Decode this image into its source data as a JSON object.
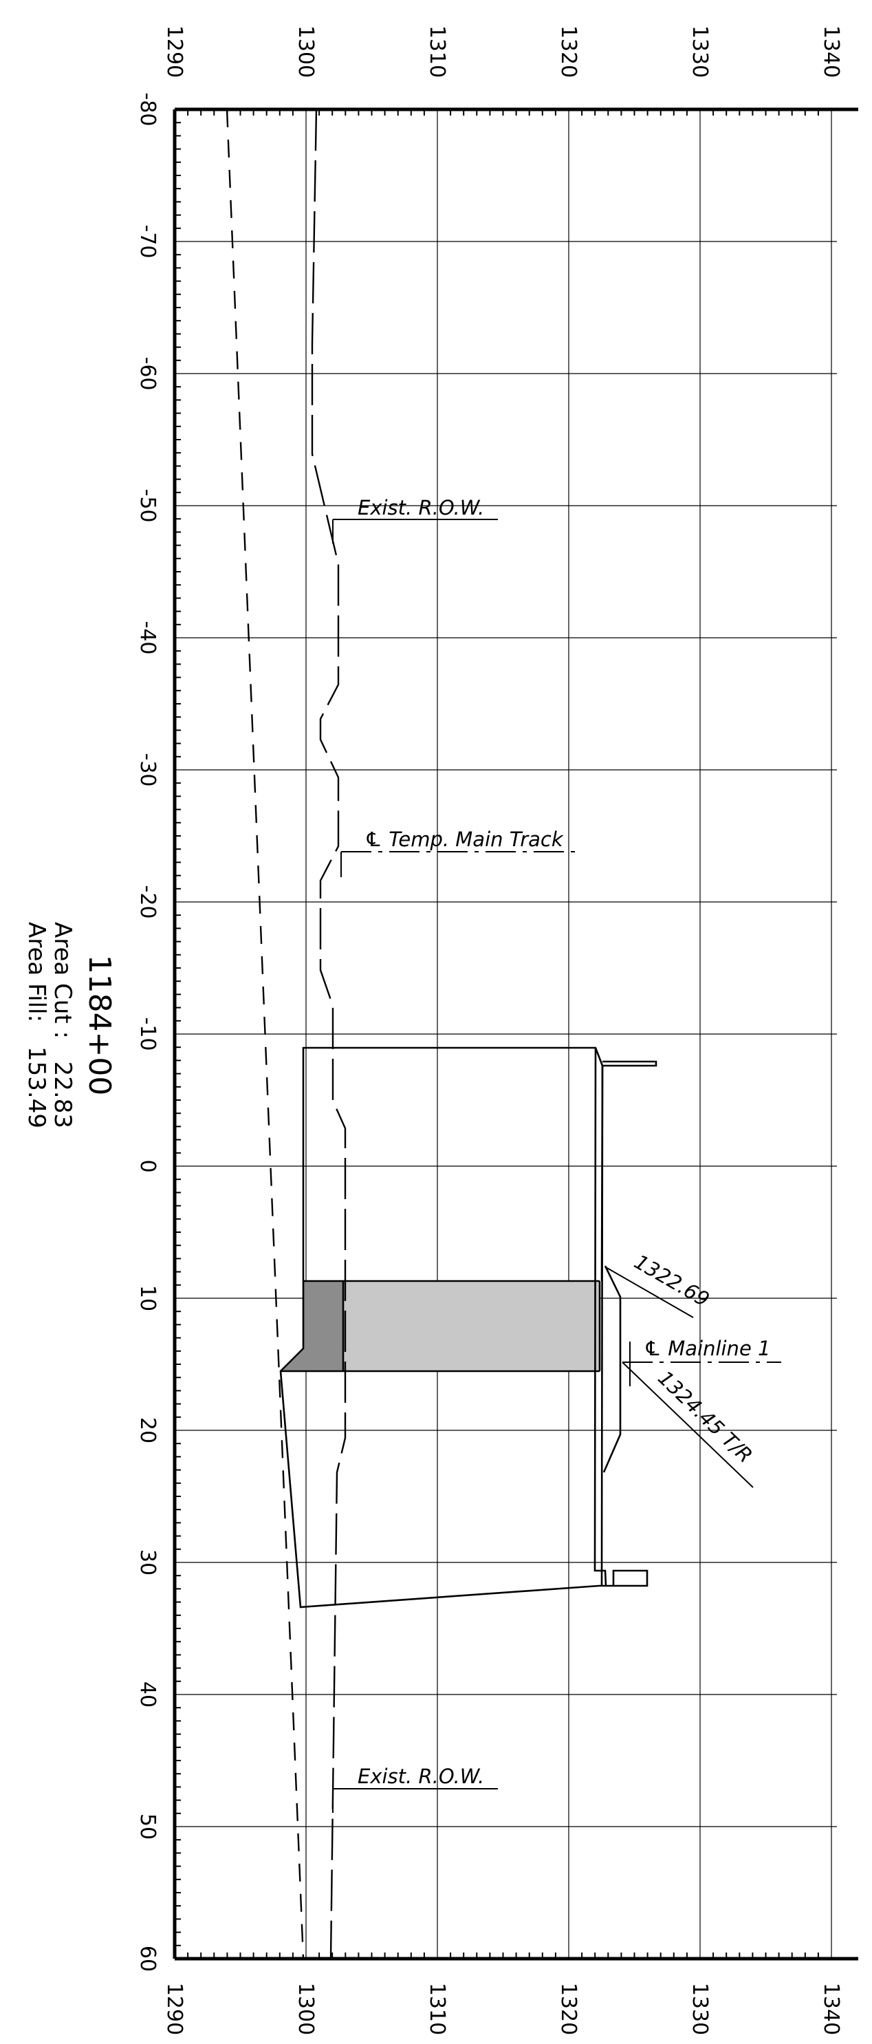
{
  "section": {
    "station": "1184+00",
    "area_cut_label": "Area Cut :",
    "area_cut_value": "22.83",
    "area_fill_label": "Area Fill:",
    "area_fill_value": "153.49"
  },
  "axes": {
    "elevation_ticks": [
      1290,
      1300,
      1310,
      1320,
      1330,
      1340
    ],
    "offset_ticks": [
      -80,
      -70,
      -60,
      -50,
      -40,
      -30,
      -20,
      -10,
      0,
      10,
      20,
      30,
      40,
      50,
      60
    ]
  },
  "annotations": {
    "exist_row_top": "Exist. R.O.W.",
    "temp_main_track": "℄ Temp. Main Track",
    "elev_1": "1322.69",
    "mainline": "℄ Mainline 1",
    "elev_2": "1324.45 T/R",
    "exist_row_bottom": "Exist. R.O.W."
  },
  "colors": {
    "cut_fill": "#8c8c8c",
    "fill_area": "#c8c8c8",
    "ink": "#000000",
    "grid": "#000000"
  }
}
